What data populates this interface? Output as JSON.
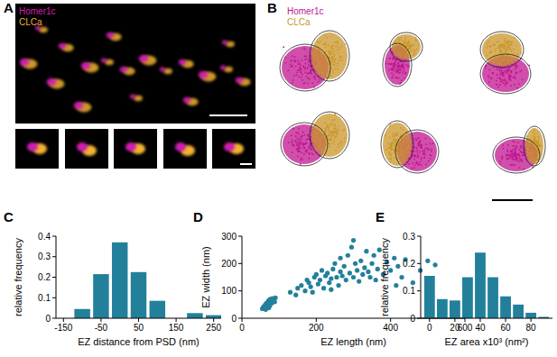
{
  "images": [
    {
      "title": "A",
      "legend": [
        {
          "text": "Homer1c",
          "color": "#d21fb4"
        },
        {
          "text": "CLCa",
          "color": "#f2b233"
        }
      ]
    },
    {
      "title": "B",
      "legend": [
        {
          "text": "Homer1c",
          "color": "#c0148f"
        },
        {
          "text": "CLCa",
          "color": "#c9962a"
        }
      ]
    }
  ],
  "chart_data": [
    {
      "type": "histogram",
      "title": "C",
      "x_label": "EZ distance from PSD (nm)",
      "y_label": "relative frequency",
      "bins": [
        -125,
        -75,
        -25,
        25,
        75,
        125,
        175,
        225,
        275
      ],
      "values": [
        0.045,
        0.215,
        0.37,
        0.225,
        0.085,
        0,
        0.025,
        0.015
      ],
      "color": "#23809a",
      "xlim": [
        -170,
        270
      ],
      "ylim": [
        0,
        0.4
      ],
      "xticks": [
        -150,
        -50,
        50,
        150,
        250
      ],
      "yticks": [
        0,
        0.1,
        0.2,
        0.3,
        0.4
      ],
      "grid": false
    },
    {
      "type": "scatter",
      "title": "D",
      "x_label": "EZ length (nm)",
      "y_label": "EZ width (nm)",
      "x": [
        55,
        58,
        60,
        62,
        63,
        65,
        66,
        68,
        70,
        70,
        72,
        74,
        75,
        76,
        78,
        80,
        82,
        85,
        88,
        90,
        64,
        72,
        130,
        145,
        150,
        160,
        170,
        175,
        180,
        185,
        190,
        195,
        200,
        205,
        210,
        215,
        220,
        225,
        230,
        235,
        240,
        245,
        250,
        255,
        260,
        265,
        270,
        275,
        280,
        285,
        290,
        295,
        300,
        305,
        310,
        315,
        320,
        325,
        330,
        335,
        340,
        345,
        350,
        360,
        365,
        370,
        380,
        390,
        400,
        410,
        420,
        430,
        440,
        460,
        480,
        500,
        520,
        265,
        300,
        240,
        355,
        415
      ],
      "values": [
        35,
        42,
        38,
        45,
        50,
        40,
        55,
        48,
        60,
        52,
        65,
        58,
        45,
        70,
        62,
        55,
        72,
        66,
        60,
        75,
        32,
        38,
        95,
        85,
        110,
        120,
        100,
        140,
        130,
        115,
        95,
        150,
        160,
        125,
        140,
        175,
        110,
        155,
        165,
        130,
        145,
        180,
        200,
        150,
        120,
        170,
        155,
        190,
        140,
        230,
        165,
        260,
        150,
        200,
        175,
        135,
        210,
        160,
        185,
        245,
        170,
        150,
        200,
        140,
        180,
        250,
        160,
        205,
        175,
        220,
        190,
        150,
        215,
        130,
        175,
        210,
        195,
        220,
        285,
        105,
        230,
        120
      ],
      "color": "#23809a",
      "marker": "circle",
      "xlim": [
        0,
        600
      ],
      "ylim": [
        0,
        300
      ],
      "xticks": [
        0,
        200,
        400,
        600
      ],
      "yticks": [
        0,
        100,
        200,
        300
      ],
      "grid": false
    },
    {
      "type": "histogram",
      "title": "E",
      "x_label": "EZ area x10³ (nm²)",
      "y_label": "relative frequency",
      "bins": [
        -5,
        5,
        15,
        25,
        35,
        45,
        55,
        65,
        75,
        85,
        95
      ],
      "values": [
        0.155,
        0.07,
        0.065,
        0.15,
        0.24,
        0.15,
        0.08,
        0.05,
        0.02,
        0.005
      ],
      "color": "#23809a",
      "xlim": [
        -7,
        97
      ],
      "ylim": [
        0,
        0.3
      ],
      "xticks": [
        0,
        20,
        40,
        60,
        80
      ],
      "yticks": [
        0,
        0.1,
        0.2,
        0.3
      ],
      "grid": false
    }
  ]
}
